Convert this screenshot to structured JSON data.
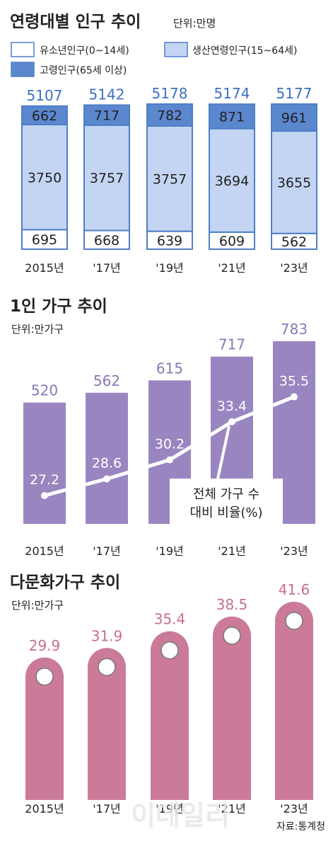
{
  "colors": {
    "youth": "#ffffff",
    "working_age": "#c3d5f2",
    "elderly": "#5b87cf",
    "stack_border": "#4f7fc7",
    "one_person_bar": "#9986c0",
    "one_person_value": "#8a78b5",
    "multicultural_bar": "#cb7b99",
    "multicultural_value": "#c76f92",
    "text": "#222222",
    "total_value": "#3d6fc2"
  },
  "chart_data": [
    {
      "type": "bar",
      "stacked": true,
      "title": "연령대별 인구 추이",
      "unit": "단위:만명",
      "categories": [
        "2015년",
        "'17년",
        "'19년",
        "'21년",
        "'23년"
      ],
      "totals": [
        5107,
        5142,
        5178,
        5174,
        5177
      ],
      "series": [
        {
          "name": "유소년인구(0~14세)",
          "values": [
            695,
            668,
            639,
            609,
            562
          ]
        },
        {
          "name": "생산연령인구(15~64세)",
          "values": [
            3750,
            3757,
            3757,
            3694,
            3655
          ]
        },
        {
          "name": "고령인구(65세 이상)",
          "values": [
            662,
            717,
            782,
            871,
            961
          ]
        }
      ],
      "legend": "top"
    },
    {
      "type": "bar",
      "title": "1인 가구 추이",
      "unit": "단위:만가구",
      "categories": [
        "2015년",
        "'17년",
        "'19년",
        "'21년",
        "'23년"
      ],
      "values": [
        520,
        562,
        615,
        717,
        783
      ],
      "line": {
        "type": "line",
        "values": [
          27.2,
          28.6,
          30.2,
          33.4,
          35.5
        ],
        "annotation": [
          "전체 가구 수",
          "대비 비율(%)"
        ]
      }
    },
    {
      "type": "bar",
      "title": "다문화가구 추이",
      "unit": "단위:만가구",
      "categories": [
        "2015년",
        "'17년",
        "'19년",
        "'21년",
        "'23년"
      ],
      "values": [
        29.9,
        31.9,
        35.4,
        38.5,
        41.6
      ]
    }
  ],
  "source": "자료:통계청",
  "watermark": "이데일리"
}
